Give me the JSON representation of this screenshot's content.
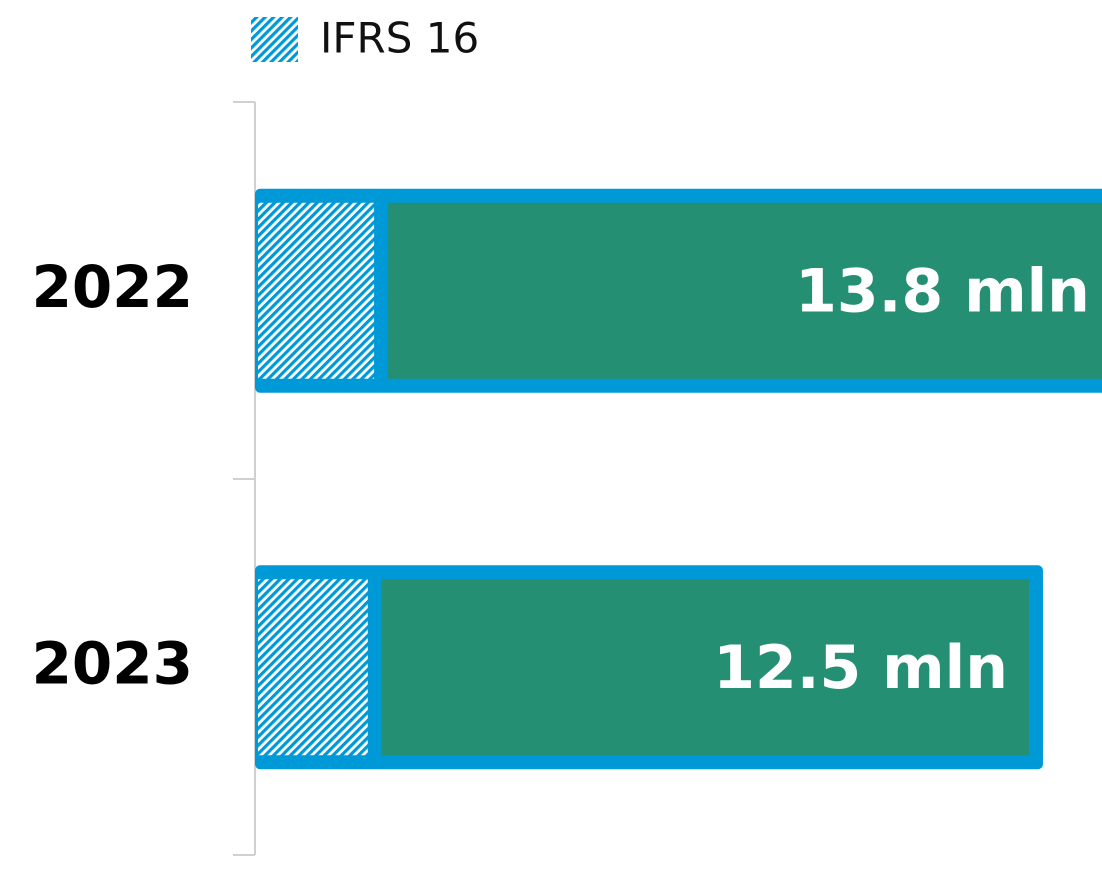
{
  "chart_data": {
    "type": "bar",
    "orientation": "horizontal",
    "categories": [
      "2022",
      "2023"
    ],
    "values": [
      13.8,
      12.5
    ],
    "value_labels": [
      "13.8 mln",
      "12.5 mln"
    ],
    "color": "#248f72",
    "border_color": "#0099d8",
    "series": [
      {
        "name": "IFRS 16",
        "color": "#0099d8",
        "values": [
          2.0,
          1.9
        ]
      }
    ],
    "xlim": [
      0,
      13.5
    ],
    "legend": "top"
  }
}
